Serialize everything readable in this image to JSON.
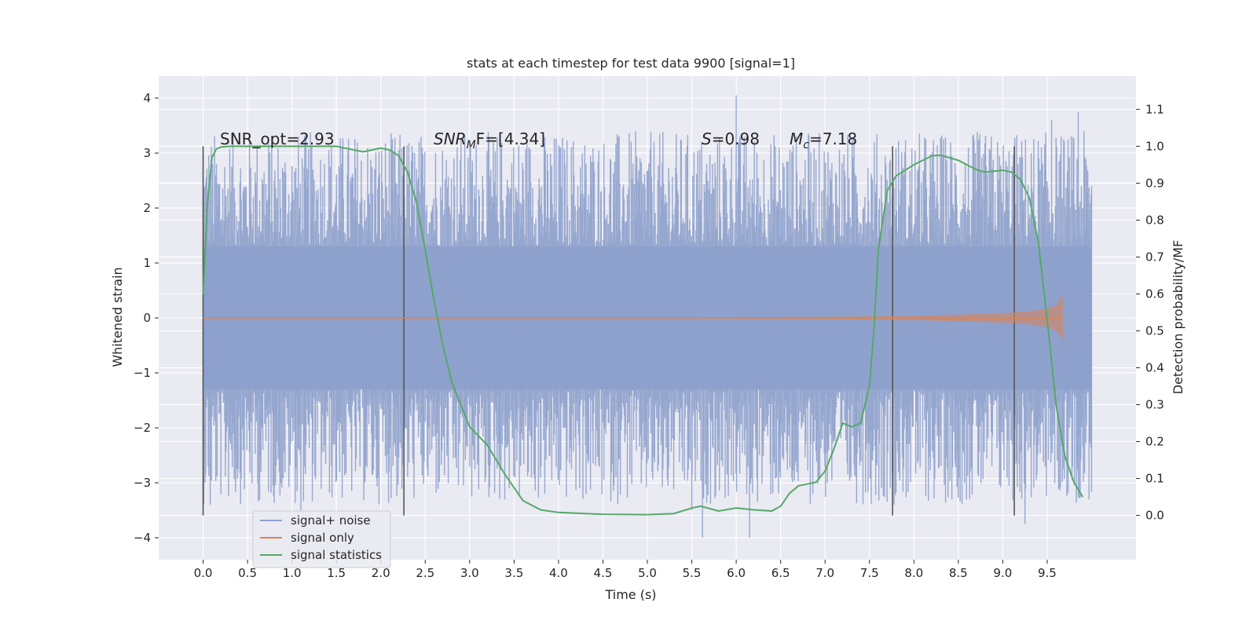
{
  "chart_data": {
    "type": "line",
    "title": "stats at each timestep for test data 9900 [signal=1]",
    "xlabel": "Time (s)",
    "ylabel": "Whitened strain",
    "y2label": "Detection probability/MF",
    "xlim": [
      -0.5,
      10.5
    ],
    "ylim": [
      -4.4,
      4.4
    ],
    "y2lim": [
      -0.12,
      1.19
    ],
    "xticks": [
      "0.0",
      "0.5",
      "1.0",
      "1.5",
      "2.0",
      "2.5",
      "3.0",
      "3.5",
      "4.0",
      "4.5",
      "5.0",
      "5.5",
      "6.0",
      "6.5",
      "7.0",
      "7.5",
      "8.0",
      "8.5",
      "9.0",
      "9.5"
    ],
    "yticks": [
      "4",
      "3",
      "2",
      "1",
      "0",
      "−1",
      "−2",
      "−3",
      "−4"
    ],
    "y2ticks": [
      "1.1",
      "1.0",
      "0.9",
      "0.8",
      "0.7",
      "0.6",
      "0.5",
      "0.4",
      "0.3",
      "0.2",
      "0.1",
      "0.0"
    ],
    "grid": true,
    "legend_position": "lower-left",
    "annotations": {
      "snr_opt": "SNR_opt=2.93",
      "snr_mf_a": "SNR",
      "snr_mf_sub": "M",
      "snr_mf_b": "F=[4.34]",
      "s_a": "S",
      "s_b": "=0.98",
      "mc_a": "M",
      "mc_sub": "c",
      "mc_b": "=7.18"
    },
    "vertical_lines_x": [
      0.0,
      2.26,
      7.76,
      9.13
    ],
    "noise": {
      "name": "signal+ noise",
      "color": "#8da0cb",
      "x_range": [
        0.0,
        10.0
      ],
      "amplitude_band": [
        -1.3,
        1.3
      ],
      "y_min": -4.0,
      "y_max": 4.05
    },
    "signal": {
      "name": "signal only",
      "color": "#dd8452",
      "x": [
        0.0,
        5.0,
        6.0,
        7.0,
        7.5,
        8.0,
        8.5,
        9.0,
        9.3,
        9.5,
        9.6,
        9.68
      ],
      "envelope": [
        0.0,
        0.005,
        0.01,
        0.02,
        0.03,
        0.04,
        0.06,
        0.09,
        0.12,
        0.17,
        0.23,
        0.42
      ]
    },
    "statistics": {
      "name": "signal statistics",
      "color": "#55a868",
      "x": [
        0.0,
        0.05,
        0.1,
        0.15,
        0.2,
        0.3,
        0.5,
        1.0,
        1.5,
        1.7,
        1.8,
        2.0,
        2.1,
        2.2,
        2.3,
        2.4,
        2.5,
        2.6,
        2.7,
        2.8,
        3.0,
        3.2,
        3.4,
        3.6,
        3.8,
        4.0,
        4.5,
        5.0,
        5.3,
        5.5,
        5.6,
        5.8,
        6.0,
        6.2,
        6.4,
        6.5,
        6.6,
        6.7,
        6.9,
        7.0,
        7.1,
        7.2,
        7.3,
        7.4,
        7.5,
        7.55,
        7.6,
        7.7,
        7.8,
        8.0,
        8.2,
        8.3,
        8.5,
        8.7,
        8.8,
        9.0,
        9.1,
        9.2,
        9.3,
        9.4,
        9.5,
        9.6,
        9.7,
        9.8,
        9.9
      ],
      "y": [
        0.6,
        0.85,
        0.97,
        0.993,
        0.998,
        1.0,
        1.0,
        1.0,
        1.0,
        0.99,
        0.985,
        0.995,
        0.99,
        0.975,
        0.93,
        0.85,
        0.72,
        0.58,
        0.46,
        0.36,
        0.24,
        0.19,
        0.11,
        0.04,
        0.015,
        0.008,
        0.003,
        0.002,
        0.005,
        0.02,
        0.025,
        0.012,
        0.02,
        0.015,
        0.012,
        0.025,
        0.06,
        0.08,
        0.09,
        0.12,
        0.18,
        0.25,
        0.24,
        0.25,
        0.35,
        0.5,
        0.72,
        0.88,
        0.92,
        0.95,
        0.974,
        0.976,
        0.962,
        0.937,
        0.93,
        0.935,
        0.93,
        0.91,
        0.86,
        0.74,
        0.53,
        0.3,
        0.16,
        0.09,
        0.05
      ]
    }
  }
}
